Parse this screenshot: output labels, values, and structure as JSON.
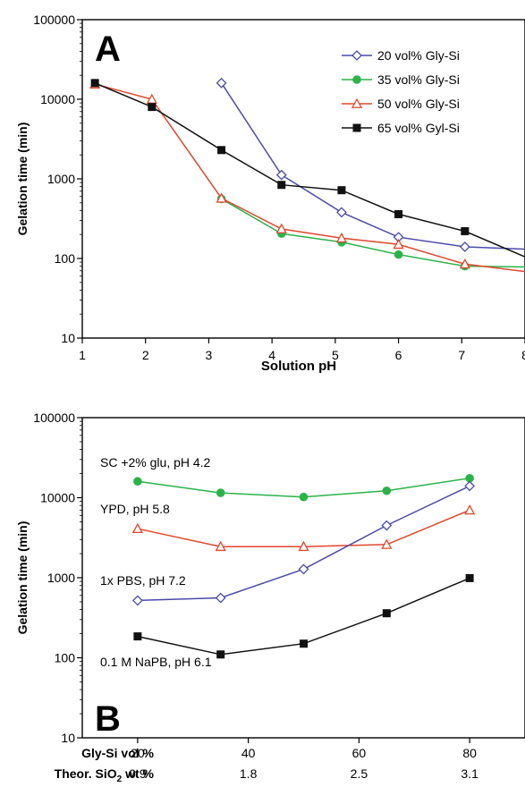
{
  "chart_data": [
    {
      "type": "line",
      "panel_label": "A",
      "xlabel": "Solution pH",
      "ylabel": "Gelation time (min)",
      "xlim": [
        1,
        8
      ],
      "ylim": [
        10,
        100000
      ],
      "yscale": "log",
      "x_ticks": [
        "1",
        "2",
        "3",
        "4",
        "5",
        "6",
        "7",
        "8"
      ],
      "y_ticks": [
        "10",
        "100",
        "1000",
        "10000",
        "100000"
      ],
      "legend_position": "top-right",
      "series": [
        {
          "name": "20 vol% Gly-Si",
          "color": "#4a4aa8",
          "marker": "diamond-open",
          "points": [
            [
              3.2,
              16000
            ],
            [
              4.15,
              1120
            ],
            [
              5.1,
              380
            ],
            [
              6.0,
              185
            ],
            [
              7.05,
              140
            ],
            [
              8.1,
              130
            ]
          ]
        },
        {
          "name": "35 vol% Gly-Si",
          "color": "#2bb34a",
          "marker": "circle-filled",
          "points": [
            [
              3.2,
              560
            ],
            [
              4.15,
              205
            ],
            [
              5.1,
              160
            ],
            [
              6.0,
              112
            ],
            [
              7.05,
              80
            ],
            [
              8.1,
              78
            ]
          ]
        },
        {
          "name": "50 vol% Gly-Si",
          "color": "#e0462c",
          "marker": "triangle-open",
          "points": [
            [
              1.2,
              15500
            ],
            [
              2.1,
              10000
            ],
            [
              3.2,
              570
            ],
            [
              4.15,
              235
            ],
            [
              5.1,
              180
            ],
            [
              6.0,
              150
            ],
            [
              7.05,
              85
            ],
            [
              8.1,
              67
            ]
          ]
        },
        {
          "name": "65 vol% Gyl-Si",
          "color": "#111111",
          "marker": "square-filled",
          "points": [
            [
              1.2,
              16000
            ],
            [
              2.1,
              8000
            ],
            [
              3.2,
              2300
            ],
            [
              4.15,
              840
            ],
            [
              5.1,
              720
            ],
            [
              6.0,
              360
            ],
            [
              7.05,
              220
            ],
            [
              8.1,
              97
            ]
          ]
        }
      ]
    },
    {
      "type": "line",
      "panel_label": "B",
      "ylabel": "Gelation time (min)",
      "xlim": [
        10,
        90
      ],
      "ylim": [
        10,
        100000
      ],
      "yscale": "log",
      "x_ticks": [
        "20",
        "40",
        "60",
        "80"
      ],
      "y_ticks": [
        "10",
        "100",
        "1000",
        "10000",
        "100000"
      ],
      "row1_label": "Gly-Si vol %",
      "row1_values": [
        "20",
        "40",
        "60",
        "80"
      ],
      "row2_label_main": "Theor. SiO",
      "row2_label_sub": "2",
      "row2_label_tail": " wt %",
      "row2_values": [
        "0.9",
        "1.8",
        "2.5",
        "3.1"
      ],
      "series": [
        {
          "name": "SC +2% glu, pH 4.2",
          "color": "#2bb34a",
          "marker": "circle-filled",
          "points": [
            [
              20,
              16000
            ],
            [
              35,
              11500
            ],
            [
              50,
              10200
            ],
            [
              65,
              12200
            ],
            [
              80,
              17500
            ]
          ]
        },
        {
          "name": "YPD, pH 5.8",
          "color": "#e0462c",
          "marker": "triangle-open",
          "points": [
            [
              20,
              4100
            ],
            [
              35,
              2450
            ],
            [
              50,
              2450
            ],
            [
              65,
              2600
            ],
            [
              80,
              7000
            ]
          ]
        },
        {
          "name": "1x PBS, pH 7.2",
          "color": "#4a4aa8",
          "marker": "diamond-open",
          "points": [
            [
              20,
              520
            ],
            [
              35,
              560
            ],
            [
              50,
              1280
            ],
            [
              65,
              4500
            ],
            [
              80,
              14000
            ]
          ]
        },
        {
          "name": "0.1 M NaPB, pH 6.1",
          "color": "#111111",
          "marker": "square-filled",
          "points": [
            [
              20,
              185
            ],
            [
              35,
              110
            ],
            [
              50,
              150
            ],
            [
              65,
              360
            ],
            [
              80,
              990
            ]
          ]
        }
      ]
    }
  ]
}
